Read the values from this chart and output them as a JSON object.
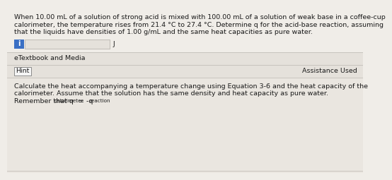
{
  "bg_color": "#f0ede8",
  "question_line1": "When 10.00 mL of a solution of strong acid is mixed with 100.00 mL of a solution of weak base in a coffee-cup",
  "question_line2": "calorimeter, the temperature rises from 21.4 °C to 27.4 °C. Determine q for the acid-base reaction, assuming",
  "question_line3": "that the liquids have densities of 1.00 g/mL and the same heat capacities as pure water.",
  "input_box_color": "#e5e1db",
  "input_box_border": "#b8b4ae",
  "unit_label": "J",
  "icon_bg": "#3a6fc4",
  "icon_text": "i",
  "icon_text_color": "#ffffff",
  "section_divider_color": "#c8c4be",
  "etextbook_text": "eTextbook and Media",
  "etextbook_bg": "#e5e1db",
  "hint_text": "Hint",
  "hint_border": "#8a8a8a",
  "hint_bg": "#f5f5f5",
  "assistance_text": "Assistance Used",
  "hint_section_bg": "#e5e1db",
  "calc_text_line1": "Calculate the heat accompanying a temperature change using Equation 3-6 and the heat capacity of the",
  "calc_text_line2": "calorimeter. Assume that the solution has the same density and heat capacity as pure water.",
  "calc_text_line3_prefix": "Remember that q",
  "calc_text_line3_sub1": "calorimeter",
  "calc_text_line3_mid": " = -q",
  "calc_text_line3_sub2": "reaction",
  "calc_section_bg": "#eae6e0",
  "font_size_q": 6.8,
  "font_size_body": 6.8,
  "font_size_hint": 6.8,
  "font_size_sub": 5.2,
  "text_color": "#1a1a1a",
  "fig_w": 5.03,
  "fig_h": 2.35
}
